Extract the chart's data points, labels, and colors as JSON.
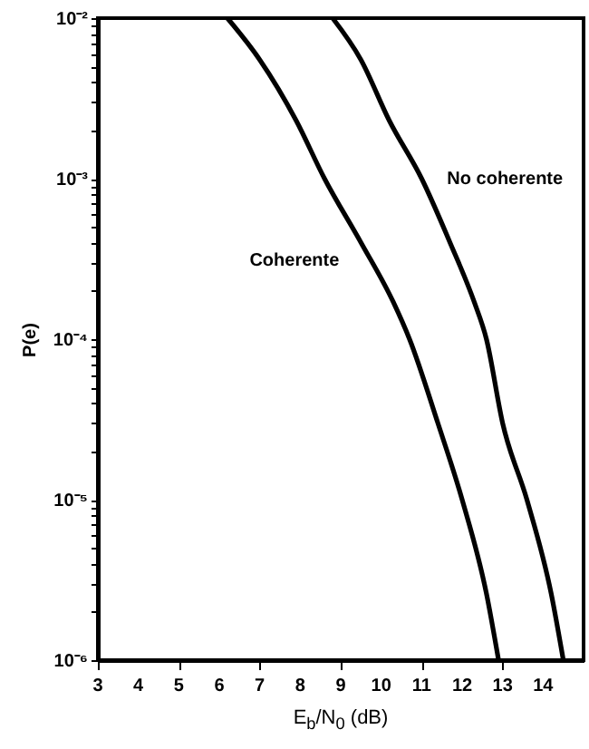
{
  "chart_data": {
    "type": "line",
    "xlabel": "E$_{b}$/N$_{0}$ (dB)",
    "ylabel": "P(e)",
    "log": "y",
    "grid": false,
    "legend": false,
    "marker": "none",
    "line_style": "solid",
    "xlim": [
      3,
      15
    ],
    "xticks": [
      3,
      4,
      5,
      6,
      7,
      8,
      9,
      10,
      11,
      12,
      13,
      14
    ],
    "ylim": [
      1e-06,
      0.01
    ],
    "yticks": [
      {
        "value": 1e-06,
        "label": "10⁻⁶"
      },
      {
        "value": 2e-06,
        "label": null
      },
      {
        "value": 3e-06,
        "label": null
      },
      {
        "value": 4e-06,
        "label": null
      },
      {
        "value": 5e-06,
        "label": null
      },
      {
        "value": 6e-06,
        "label": null
      },
      {
        "value": 7e-06,
        "label": null
      },
      {
        "value": 8e-06,
        "label": null
      },
      {
        "value": 9e-06,
        "label": null
      },
      {
        "value": 1e-05,
        "label": "10⁻⁵"
      },
      {
        "value": 2e-05,
        "label": null
      },
      {
        "value": 3e-05,
        "label": null
      },
      {
        "value": 4e-05,
        "label": null
      },
      {
        "value": 5e-05,
        "label": null
      },
      {
        "value": 6e-05,
        "label": null
      },
      {
        "value": 7e-05,
        "label": null
      },
      {
        "value": 8e-05,
        "label": null
      },
      {
        "value": 9e-05,
        "label": null
      },
      {
        "value": 0.0001,
        "label": "10⁻⁴"
      },
      {
        "value": 0.0002,
        "label": null
      },
      {
        "value": 0.0003,
        "label": null
      },
      {
        "value": 0.0004,
        "label": null
      },
      {
        "value": 0.0005,
        "label": null
      },
      {
        "value": 0.0006,
        "label": null
      },
      {
        "value": 0.0007,
        "label": null
      },
      {
        "value": 0.0008,
        "label": null
      },
      {
        "value": 0.0009,
        "label": null
      },
      {
        "value": 0.001,
        "label": "10⁻³"
      },
      {
        "value": 0.002,
        "label": null
      },
      {
        "value": 0.003,
        "label": null
      },
      {
        "value": 0.004,
        "label": null
      },
      {
        "value": 0.005,
        "label": null
      },
      {
        "value": 0.006,
        "label": null
      },
      {
        "value": 0.007,
        "label": null
      },
      {
        "value": 0.008,
        "label": null
      },
      {
        "value": 0.009,
        "label": null
      },
      {
        "value": 0.01,
        "label": "10⁻²"
      }
    ],
    "series": [
      {
        "name": "Coherente",
        "color": "#000000",
        "x": [
          6.2,
          7.0,
          7.9,
          8.6,
          9.5,
          10.3,
          10.7,
          11.4,
          12.0,
          12.6,
          12.9
        ],
        "values": [
          0.01,
          0.0055,
          0.0023,
          0.001,
          0.0004,
          0.00017,
          0.0001,
          3e-05,
          1e-05,
          2.6e-06,
          1e-06
        ]
      },
      {
        "name": "No coherente",
        "color": "#000000",
        "x": [
          8.8,
          9.5,
          10.2,
          11.0,
          11.7,
          12.3,
          12.6,
          13.0,
          13.6,
          14.2,
          14.5
        ],
        "values": [
          0.01,
          0.0055,
          0.0023,
          0.001,
          0.0004,
          0.00017,
          0.0001,
          3e-05,
          1e-05,
          2.6e-06,
          1e-06
        ]
      }
    ]
  }
}
